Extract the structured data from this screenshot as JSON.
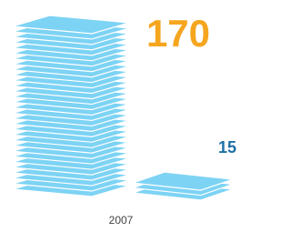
{
  "chart_data": {
    "type": "pictograph",
    "xlabel": "2007",
    "values": [
      170,
      15
    ],
    "color": "#7dd3f4",
    "label_colors": [
      "#f5a51e",
      "#1e6fa6"
    ]
  }
}
